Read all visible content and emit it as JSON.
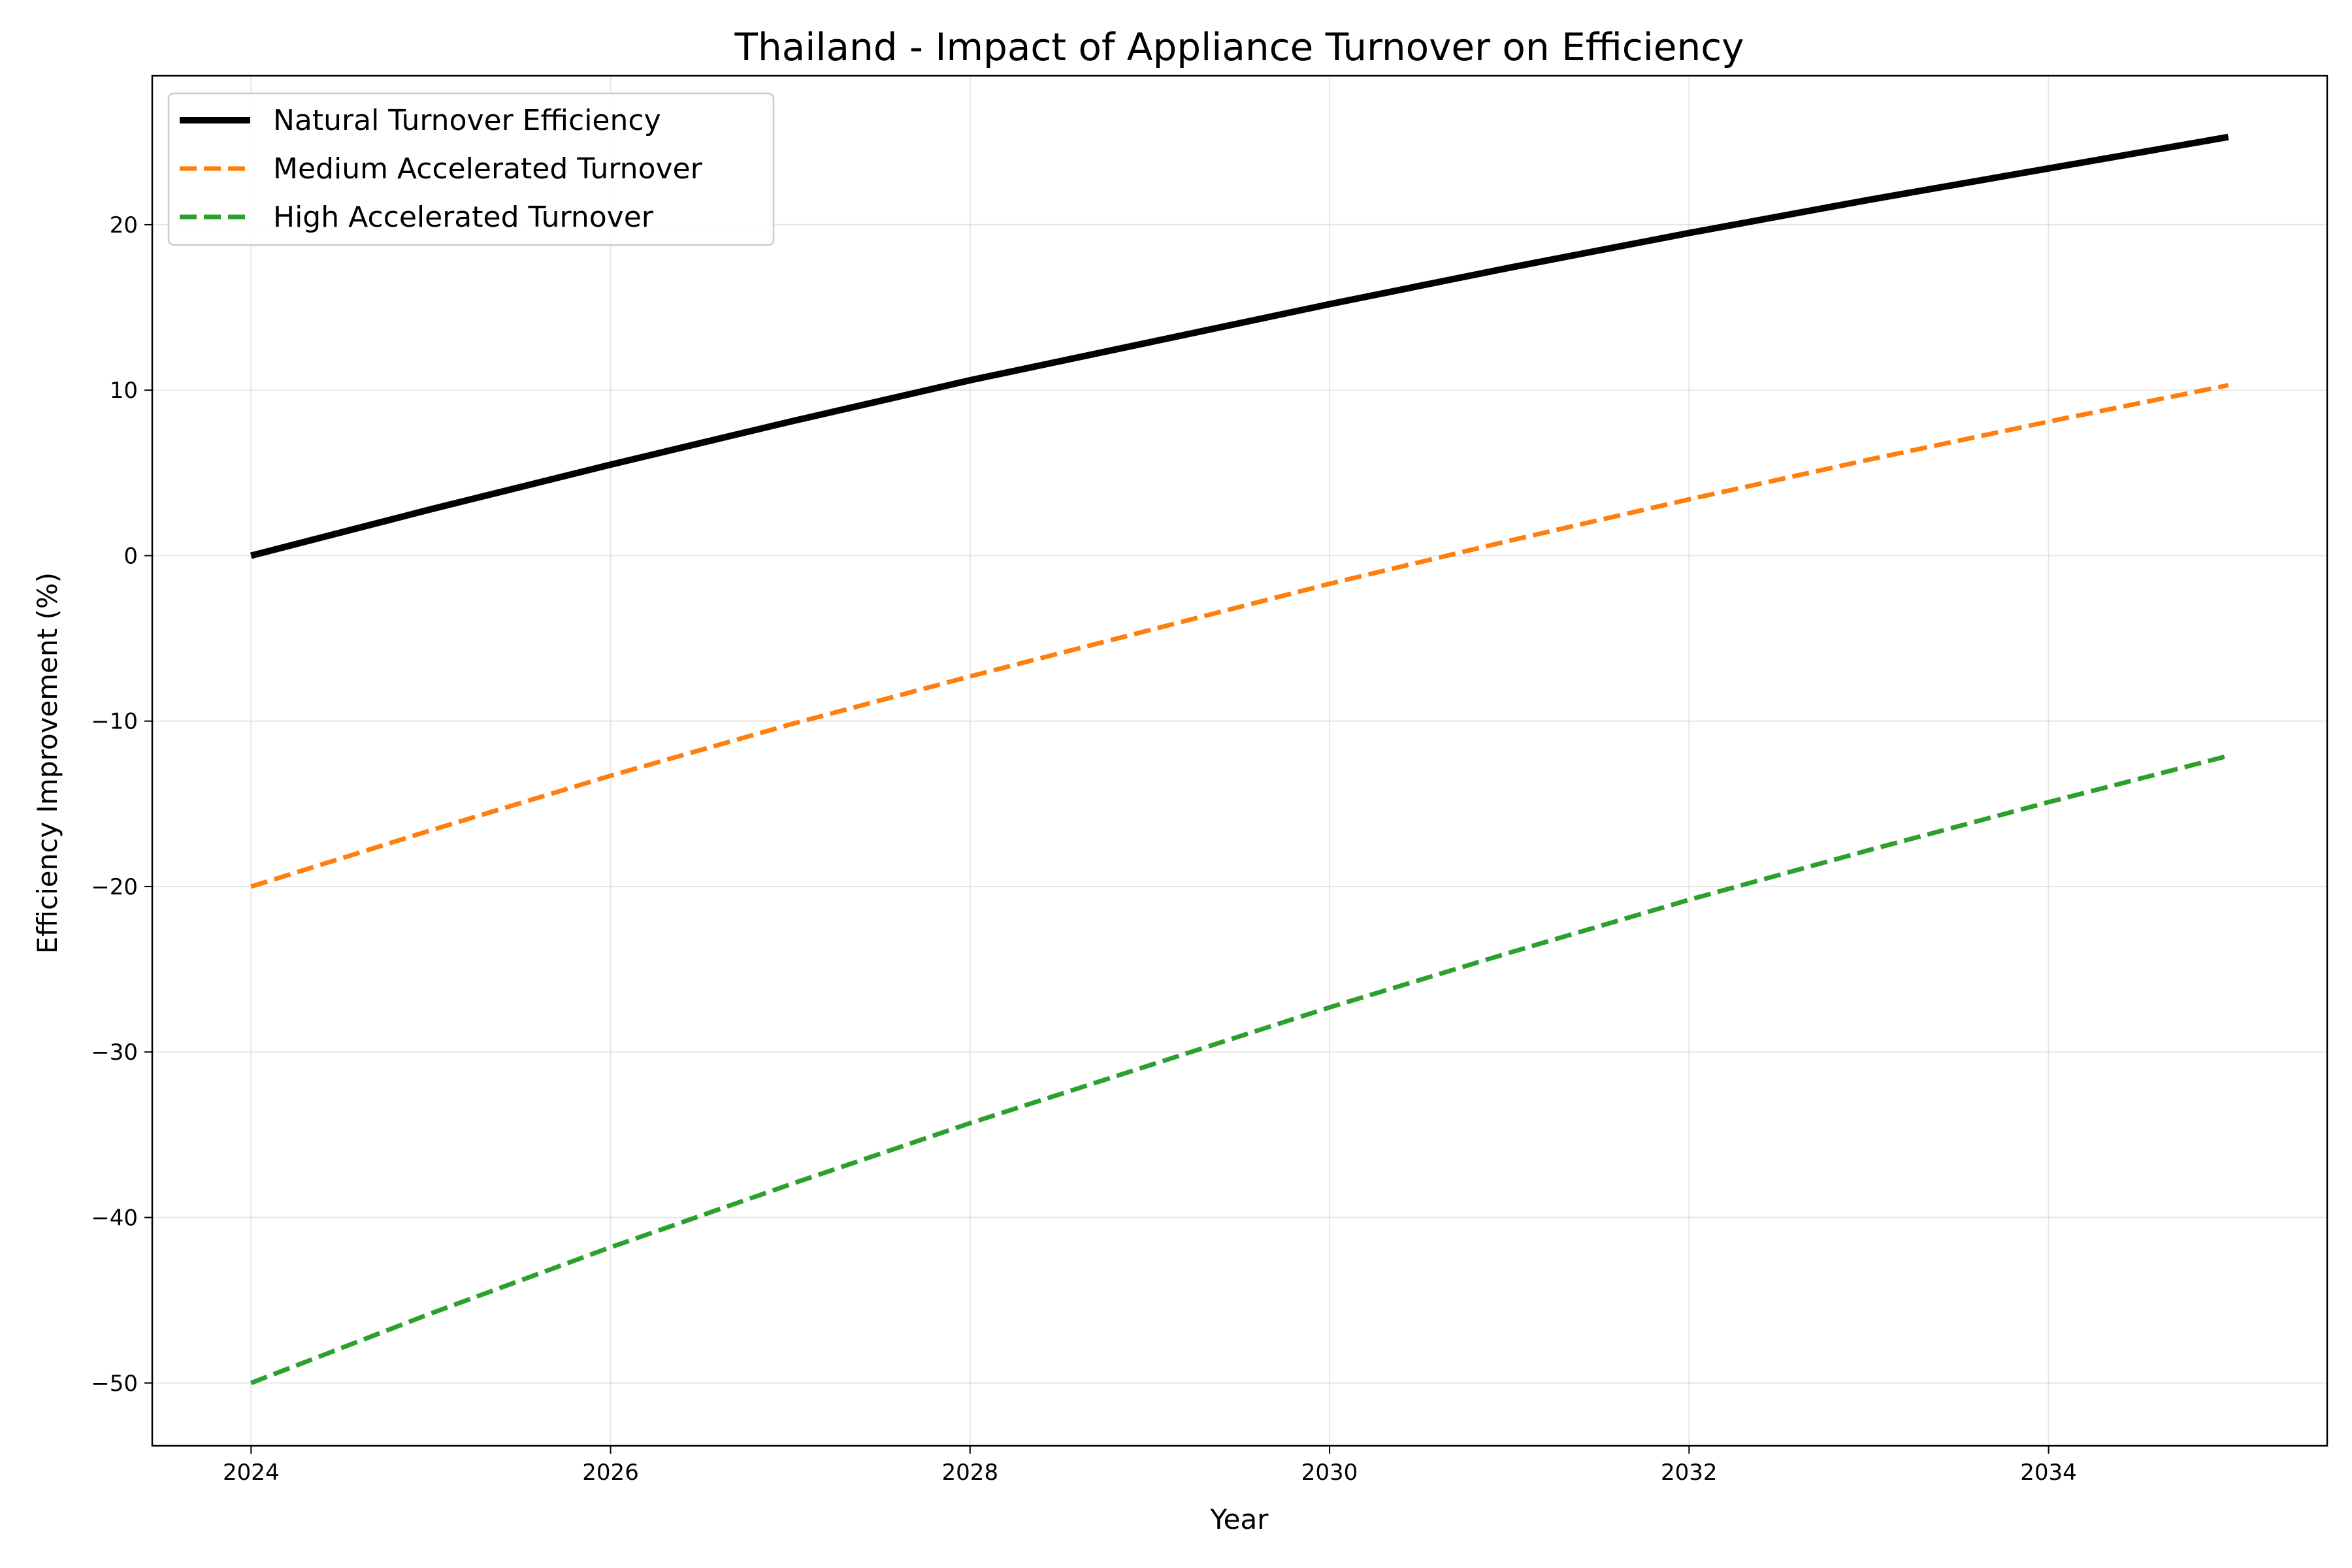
{
  "chart_data": {
    "type": "line",
    "title": "Thailand - Impact of Appliance Turnover on Efficiency",
    "xlabel": "Year",
    "ylabel": "Efficiency Improvement (%)",
    "xlim": [
      2023.45,
      2035.55
    ],
    "ylim": [
      -53.8,
      29.0
    ],
    "xticks": [
      2024,
      2026,
      2028,
      2030,
      2032,
      2034
    ],
    "yticks": [
      -50,
      -40,
      -30,
      -20,
      -10,
      0,
      10,
      20
    ],
    "grid": true,
    "legend_position": "top-left",
    "x": [
      2024,
      2025,
      2026,
      2027,
      2028,
      2029,
      2030,
      2031,
      2032,
      2033,
      2034,
      2035
    ],
    "series": [
      {
        "name": "Natural Turnover Efficiency",
        "color": "#000000",
        "style": "solid",
        "values": [
          0.0,
          2.8,
          5.5,
          8.1,
          10.6,
          12.9,
          15.2,
          17.4,
          19.5,
          21.5,
          23.4,
          25.3
        ]
      },
      {
        "name": "Medium Accelerated Turnover",
        "color": "#ff7f0e",
        "style": "dashed",
        "values": [
          -20.0,
          -16.6,
          -13.3,
          -10.2,
          -7.3,
          -4.5,
          -1.7,
          0.9,
          3.4,
          5.8,
          8.1,
          10.3
        ]
      },
      {
        "name": "High Accelerated Turnover",
        "color": "#2ca02c",
        "style": "dashed",
        "values": [
          -50.0,
          -45.8,
          -41.8,
          -38.0,
          -34.3,
          -30.8,
          -27.3,
          -24.0,
          -20.8,
          -17.8,
          -14.9,
          -12.1
        ]
      }
    ]
  }
}
